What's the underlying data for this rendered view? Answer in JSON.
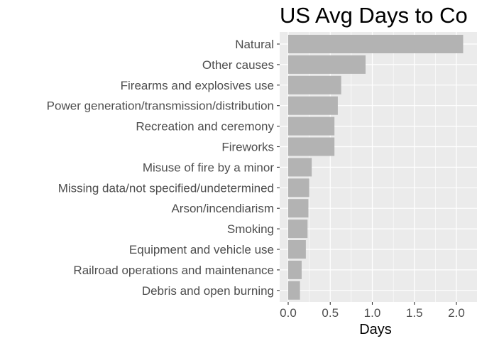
{
  "chart_data": {
    "type": "bar",
    "orientation": "horizontal",
    "title": "US Avg Days to Co",
    "xlabel": "Days",
    "ylabel": "",
    "categories": [
      "Natural",
      "Other causes",
      "Firearms and explosives use",
      "Power generation/transmission/distribution",
      "Recreation and ceremony",
      "Fireworks",
      "Misuse of fire by a minor",
      "Missing data/not specified/undetermined",
      "Arson/incendiarism",
      "Smoking",
      "Equipment and vehicle use",
      "Railroad operations and maintenance",
      "Debris and open burning"
    ],
    "values": [
      2.08,
      0.92,
      0.63,
      0.59,
      0.55,
      0.55,
      0.28,
      0.25,
      0.24,
      0.23,
      0.21,
      0.16,
      0.14
    ],
    "xlim": [
      -0.03,
      2.1
    ],
    "xticks": [
      0.0,
      0.5,
      1.0,
      1.5,
      2.0
    ],
    "xtick_labels": [
      "0.0",
      "0.5",
      "1.0",
      "1.5",
      "2.0"
    ],
    "grid": true,
    "colors": {
      "panel": "#ebebeb",
      "grid_major": "#ffffff",
      "bar": "#b3b3b3"
    }
  }
}
